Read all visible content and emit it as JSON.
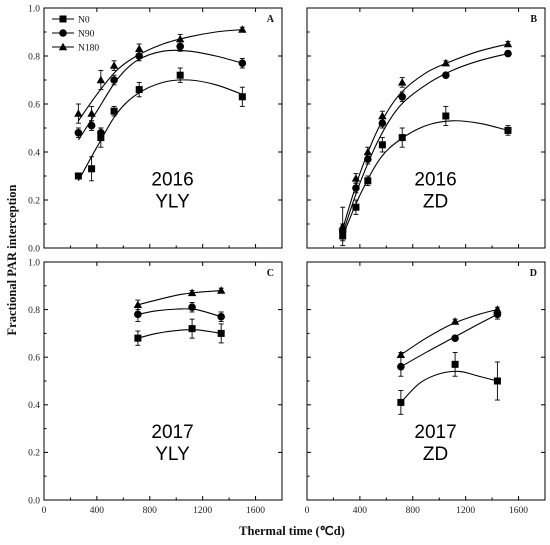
{
  "figure": {
    "xlabel": "Thermal time (℃d)",
    "ylabel": "Fractional PAR interception"
  },
  "legend": [
    "N0",
    "N90",
    "N180"
  ],
  "chart_data": [
    {
      "type": "line",
      "panel": "A",
      "caption": [
        "2016",
        "YLY"
      ],
      "xlim": [
        0,
        1800
      ],
      "ylim": [
        0,
        1.0
      ],
      "xticks": [
        "0",
        "400",
        "800",
        "1200",
        "1600"
      ],
      "yticks": [
        "0.0",
        "0.2",
        "0.4",
        "0.6",
        "0.8",
        "1.0"
      ],
      "series": [
        {
          "name": "N0",
          "marker": "square",
          "x": [
            260,
            360,
            430,
            530,
            720,
            1030,
            1500
          ],
          "y": [
            0.3,
            0.33,
            0.46,
            0.57,
            0.66,
            0.72,
            0.63
          ],
          "err": [
            0.0,
            0.05,
            0.04,
            0.02,
            0.03,
            0.03,
            0.04
          ]
        },
        {
          "name": "N90",
          "marker": "circle",
          "x": [
            260,
            360,
            430,
            530,
            720,
            1030,
            1500
          ],
          "y": [
            0.48,
            0.51,
            0.48,
            0.7,
            0.8,
            0.84,
            0.77
          ],
          "err": [
            0.02,
            0.02,
            0.02,
            0.02,
            0.02,
            0.02,
            0.02
          ]
        },
        {
          "name": "N180",
          "marker": "triangle",
          "x": [
            260,
            360,
            430,
            530,
            720,
            1030,
            1500
          ],
          "y": [
            0.56,
            0.56,
            0.7,
            0.76,
            0.83,
            0.87,
            0.91
          ],
          "err": [
            0.04,
            0.03,
            0.04,
            0.02,
            0.02,
            0.02,
            0.01
          ]
        }
      ],
      "fits": [
        {
          "name": "N0",
          "x": [
            260,
            400,
            550,
            700,
            900,
            1100,
            1300,
            1500
          ],
          "y": [
            0.28,
            0.42,
            0.56,
            0.64,
            0.69,
            0.7,
            0.68,
            0.64
          ]
        },
        {
          "name": "N90",
          "x": [
            260,
            400,
            550,
            700,
            900,
            1100,
            1300,
            1500
          ],
          "y": [
            0.45,
            0.57,
            0.7,
            0.78,
            0.82,
            0.82,
            0.8,
            0.77
          ]
        },
        {
          "name": "N180",
          "x": [
            260,
            400,
            550,
            700,
            900,
            1100,
            1300,
            1500
          ],
          "y": [
            0.53,
            0.64,
            0.74,
            0.8,
            0.85,
            0.88,
            0.9,
            0.91
          ]
        }
      ]
    },
    {
      "type": "line",
      "panel": "B",
      "caption": [
        "2016",
        "ZD"
      ],
      "xlim": [
        0,
        1800
      ],
      "ylim": [
        0,
        1.0
      ],
      "xticks": [
        "0",
        "400",
        "800",
        "1200",
        "1600"
      ],
      "yticks": [],
      "series": [
        {
          "name": "N0",
          "marker": "square",
          "x": [
            270,
            370,
            460,
            570,
            720,
            1050,
            1520
          ],
          "y": [
            0.05,
            0.17,
            0.28,
            0.43,
            0.46,
            0.55,
            0.49
          ],
          "err": [
            0.02,
            0.03,
            0.02,
            0.03,
            0.04,
            0.04,
            0.02
          ]
        },
        {
          "name": "N90",
          "marker": "circle",
          "x": [
            270,
            370,
            460,
            570,
            720,
            1050,
            1520
          ],
          "y": [
            0.07,
            0.25,
            0.37,
            0.52,
            0.63,
            0.72,
            0.81
          ],
          "err": [
            0.03,
            0.02,
            0.02,
            0.02,
            0.02,
            0.01,
            0.01
          ]
        },
        {
          "name": "N180",
          "marker": "triangle",
          "x": [
            270,
            370,
            460,
            570,
            720,
            1050,
            1520
          ],
          "y": [
            0.09,
            0.29,
            0.4,
            0.55,
            0.69,
            0.77,
            0.85
          ],
          "err": [
            0.08,
            0.02,
            0.02,
            0.02,
            0.02,
            0.01,
            0.01
          ]
        }
      ],
      "fits": [
        {
          "name": "N0",
          "x": [
            270,
            400,
            550,
            700,
            900,
            1100,
            1300,
            1520
          ],
          "y": [
            0.05,
            0.22,
            0.37,
            0.45,
            0.51,
            0.53,
            0.52,
            0.49
          ]
        },
        {
          "name": "N90",
          "x": [
            270,
            400,
            550,
            700,
            900,
            1100,
            1300,
            1520
          ],
          "y": [
            0.06,
            0.27,
            0.46,
            0.59,
            0.68,
            0.74,
            0.78,
            0.81
          ]
        },
        {
          "name": "N180",
          "x": [
            270,
            400,
            550,
            700,
            900,
            1100,
            1300,
            1520
          ],
          "y": [
            0.08,
            0.31,
            0.51,
            0.64,
            0.73,
            0.78,
            0.82,
            0.85
          ]
        }
      ]
    },
    {
      "type": "line",
      "panel": "C",
      "caption": [
        "2017",
        "YLY"
      ],
      "xlim": [
        0,
        1800
      ],
      "ylim": [
        0,
        1.0
      ],
      "xticks": [
        "0",
        "400",
        "800",
        "1200",
        "1600"
      ],
      "yticks": [
        "0.0",
        "0.2",
        "0.4",
        "0.6",
        "0.8",
        "1.0"
      ],
      "series": [
        {
          "name": "N0",
          "marker": "square",
          "x": [
            710,
            1120,
            1340
          ],
          "y": [
            0.68,
            0.72,
            0.7
          ],
          "err": [
            0.03,
            0.04,
            0.04
          ]
        },
        {
          "name": "N90",
          "marker": "circle",
          "x": [
            710,
            1120,
            1340
          ],
          "y": [
            0.78,
            0.81,
            0.77
          ],
          "err": [
            0.03,
            0.02,
            0.02
          ]
        },
        {
          "name": "N180",
          "marker": "triangle",
          "x": [
            710,
            1120,
            1340
          ],
          "y": [
            0.82,
            0.87,
            0.88
          ],
          "err": [
            0.02,
            0.01,
            0.01
          ]
        }
      ],
      "fits": [
        {
          "name": "N0",
          "x": [
            710,
            850,
            1000,
            1150,
            1340
          ],
          "y": [
            0.68,
            0.7,
            0.712,
            0.715,
            0.7
          ]
        },
        {
          "name": "N90",
          "x": [
            710,
            850,
            1000,
            1150,
            1340
          ],
          "y": [
            0.78,
            0.795,
            0.802,
            0.8,
            0.77
          ]
        },
        {
          "name": "N180",
          "x": [
            710,
            850,
            1000,
            1150,
            1340
          ],
          "y": [
            0.82,
            0.84,
            0.86,
            0.872,
            0.88
          ]
        }
      ]
    },
    {
      "type": "line",
      "panel": "D",
      "caption": [
        "2017",
        "ZD"
      ],
      "xlim": [
        0,
        1800
      ],
      "ylim": [
        0,
        1.0
      ],
      "xticks": [
        "0",
        "400",
        "800",
        "1200",
        "1600"
      ],
      "yticks": [],
      "series": [
        {
          "name": "N0",
          "marker": "square",
          "x": [
            710,
            1120,
            1440
          ],
          "y": [
            0.41,
            0.57,
            0.5
          ],
          "err": [
            0.05,
            0.05,
            0.08
          ]
        },
        {
          "name": "N90",
          "marker": "circle",
          "x": [
            710,
            1120,
            1440
          ],
          "y": [
            0.56,
            0.68,
            0.78
          ],
          "err": [
            0.04,
            0.01,
            0.02
          ]
        },
        {
          "name": "N180",
          "marker": "triangle",
          "x": [
            710,
            1120,
            1440
          ],
          "y": [
            0.61,
            0.75,
            0.8
          ],
          "err": [
            0.01,
            0.01,
            0.01
          ]
        }
      ],
      "fits": [
        {
          "name": "N0",
          "x": [
            710,
            850,
            1000,
            1150,
            1300,
            1440
          ],
          "y": [
            0.41,
            0.49,
            0.53,
            0.54,
            0.52,
            0.5
          ]
        },
        {
          "name": "N90",
          "x": [
            710,
            900,
            1100,
            1300,
            1440
          ],
          "y": [
            0.56,
            0.62,
            0.68,
            0.74,
            0.78
          ]
        },
        {
          "name": "N180",
          "x": [
            710,
            900,
            1100,
            1300,
            1440
          ],
          "y": [
            0.61,
            0.68,
            0.74,
            0.78,
            0.8
          ]
        }
      ]
    }
  ]
}
